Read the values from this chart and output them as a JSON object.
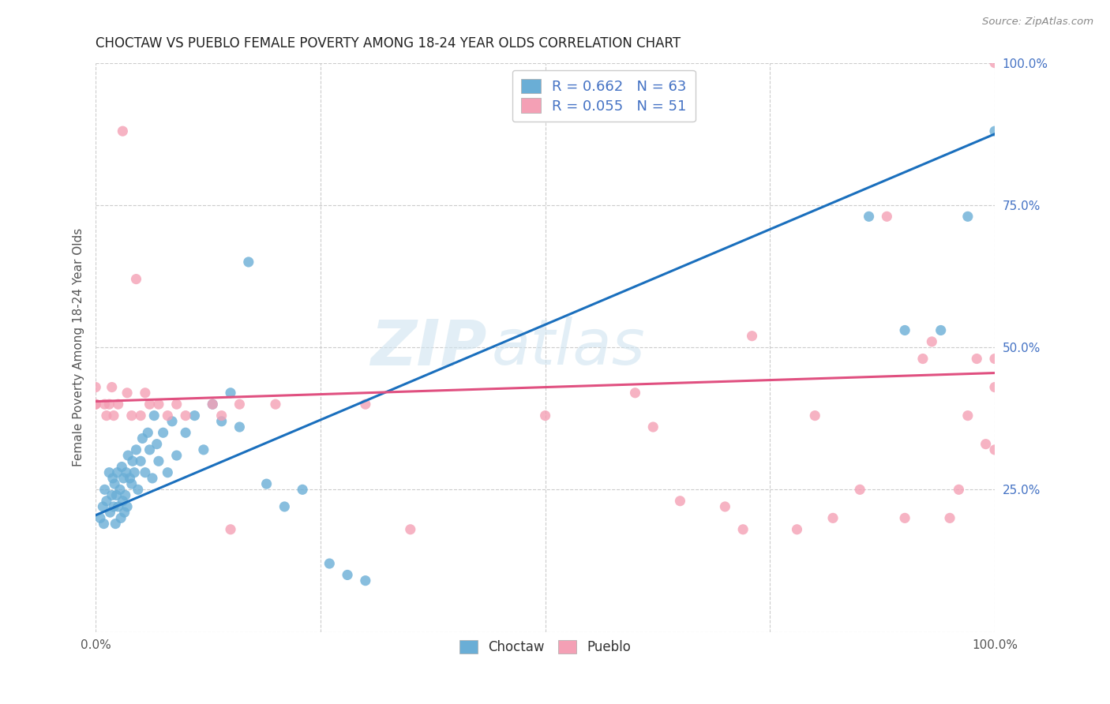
{
  "title": "CHOCTAW VS PUEBLO FEMALE POVERTY AMONG 18-24 YEAR OLDS CORRELATION CHART",
  "source": "Source: ZipAtlas.com",
  "ylabel": "Female Poverty Among 18-24 Year Olds",
  "xlim": [
    0,
    1
  ],
  "ylim": [
    0,
    1
  ],
  "ytick_positions": [
    0.25,
    0.5,
    0.75,
    1.0
  ],
  "ytick_labels_right": [
    "25.0%",
    "50.0%",
    "75.0%",
    "100.0%"
  ],
  "choctaw_color": "#6aaed6",
  "pueblo_color": "#f4a0b5",
  "choctaw_line_color": "#1a6fbd",
  "pueblo_line_color": "#e05080",
  "R_choctaw": 0.662,
  "N_choctaw": 63,
  "R_pueblo": 0.055,
  "N_pueblo": 51,
  "watermark_text": "ZIP",
  "watermark_text2": "atlas",
  "background_color": "#ffffff",
  "grid_color": "#cccccc",
  "choctaw_line_y0": 0.205,
  "choctaw_line_y1": 0.875,
  "pueblo_line_y0": 0.405,
  "pueblo_line_y1": 0.455,
  "choctaw_x": [
    0.005,
    0.008,
    0.009,
    0.01,
    0.012,
    0.015,
    0.016,
    0.018,
    0.019,
    0.02,
    0.021,
    0.022,
    0.023,
    0.024,
    0.025,
    0.027,
    0.028,
    0.029,
    0.03,
    0.031,
    0.032,
    0.033,
    0.034,
    0.035,
    0.036,
    0.038,
    0.04,
    0.041,
    0.043,
    0.045,
    0.047,
    0.05,
    0.052,
    0.055,
    0.058,
    0.06,
    0.063,
    0.065,
    0.068,
    0.07,
    0.075,
    0.08,
    0.085,
    0.09,
    0.1,
    0.11,
    0.12,
    0.13,
    0.14,
    0.15,
    0.16,
    0.17,
    0.19,
    0.21,
    0.23,
    0.26,
    0.28,
    0.3,
    0.86,
    0.9,
    0.94,
    0.97,
    1.0
  ],
  "choctaw_y": [
    0.2,
    0.22,
    0.19,
    0.25,
    0.23,
    0.28,
    0.21,
    0.24,
    0.27,
    0.22,
    0.26,
    0.19,
    0.24,
    0.28,
    0.22,
    0.25,
    0.2,
    0.29,
    0.23,
    0.27,
    0.21,
    0.24,
    0.28,
    0.22,
    0.31,
    0.27,
    0.26,
    0.3,
    0.28,
    0.32,
    0.25,
    0.3,
    0.34,
    0.28,
    0.35,
    0.32,
    0.27,
    0.38,
    0.33,
    0.3,
    0.35,
    0.28,
    0.37,
    0.31,
    0.35,
    0.38,
    0.32,
    0.4,
    0.37,
    0.42,
    0.36,
    0.65,
    0.26,
    0.22,
    0.25,
    0.12,
    0.1,
    0.09,
    0.73,
    0.53,
    0.53,
    0.73,
    0.88
  ],
  "pueblo_x": [
    0.0,
    0.0,
    0.0,
    0.01,
    0.012,
    0.015,
    0.018,
    0.02,
    0.025,
    0.03,
    0.035,
    0.04,
    0.045,
    0.05,
    0.055,
    0.06,
    0.07,
    0.08,
    0.09,
    0.1,
    0.13,
    0.14,
    0.15,
    0.16,
    0.2,
    0.3,
    0.35,
    0.5,
    0.6,
    0.62,
    0.65,
    0.7,
    0.72,
    0.73,
    0.78,
    0.8,
    0.82,
    0.85,
    0.88,
    0.9,
    0.92,
    0.93,
    0.95,
    0.96,
    0.97,
    0.98,
    0.99,
    1.0,
    1.0,
    1.0,
    1.0
  ],
  "pueblo_y": [
    0.4,
    0.43,
    0.4,
    0.4,
    0.38,
    0.4,
    0.43,
    0.38,
    0.4,
    0.88,
    0.42,
    0.38,
    0.62,
    0.38,
    0.42,
    0.4,
    0.4,
    0.38,
    0.4,
    0.38,
    0.4,
    0.38,
    0.18,
    0.4,
    0.4,
    0.4,
    0.18,
    0.38,
    0.42,
    0.36,
    0.23,
    0.22,
    0.18,
    0.52,
    0.18,
    0.38,
    0.2,
    0.25,
    0.73,
    0.2,
    0.48,
    0.51,
    0.2,
    0.25,
    0.38,
    0.48,
    0.33,
    0.32,
    0.48,
    0.43,
    1.0
  ]
}
